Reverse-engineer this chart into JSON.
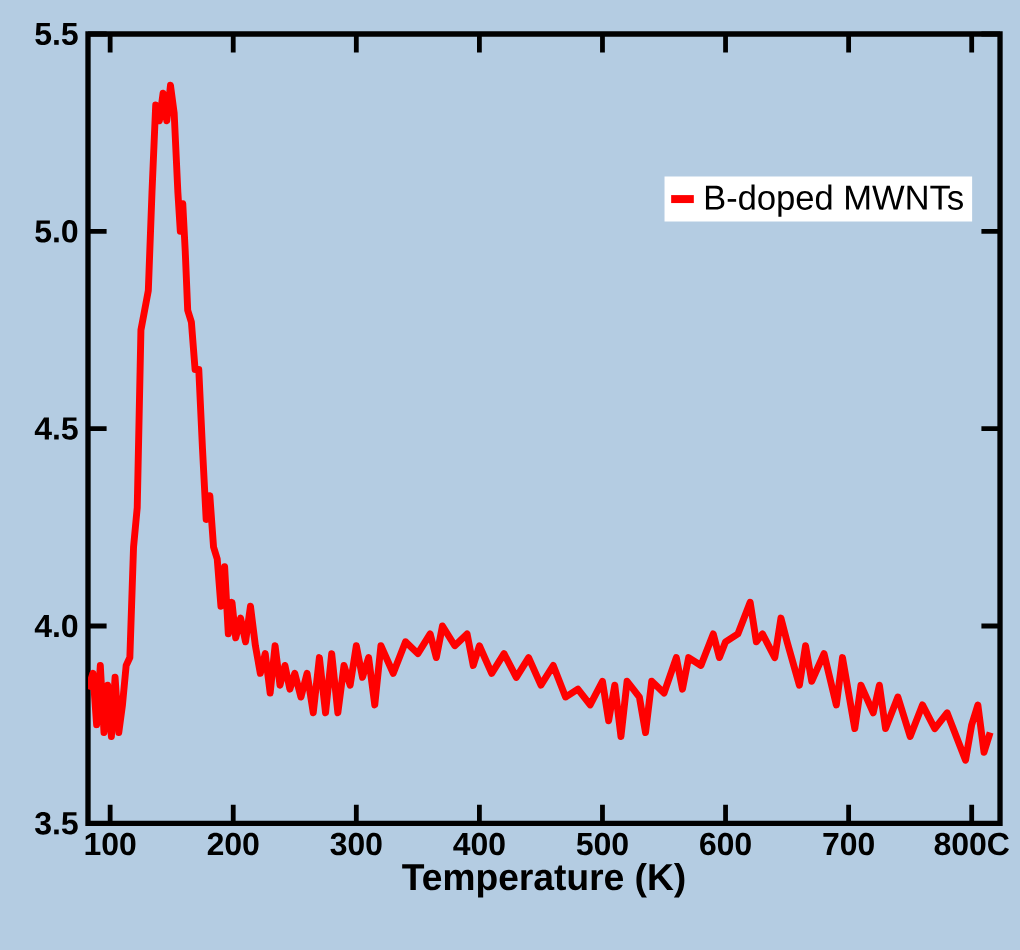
{
  "chart_data": {
    "type": "line",
    "xlabel": "Temperature (K)",
    "xlim": [
      82,
      823
    ],
    "ylim": [
      3.5,
      5.5
    ],
    "xticks": [
      100,
      200,
      300,
      400,
      500,
      600,
      700,
      {
        "value": 800,
        "label": "800C"
      }
    ],
    "yticks": [
      {
        "value": 3.5,
        "label": "3.5"
      },
      {
        "value": 4.0,
        "label": "4.0"
      },
      {
        "value": 4.5,
        "label": "4.5"
      },
      {
        "value": 5.0,
        "label": "5.0"
      },
      {
        "value": 5.5,
        "label": "5.5"
      }
    ],
    "legend": "top right",
    "grid": false,
    "marker": "none",
    "line_style": "solid",
    "x": [
      82,
      86,
      89,
      92,
      95,
      98,
      101,
      104,
      107,
      110,
      113,
      116,
      119,
      122,
      125,
      128,
      131,
      134,
      137,
      140,
      143,
      146,
      149,
      152,
      155,
      157,
      159,
      161,
      163,
      166,
      169,
      172,
      175,
      178,
      181,
      184,
      187,
      190,
      193,
      196,
      199,
      202,
      206,
      210,
      214,
      218,
      222,
      226,
      230,
      234,
      238,
      242,
      246,
      250,
      255,
      260,
      265,
      270,
      275,
      280,
      285,
      290,
      295,
      300,
      305,
      310,
      315,
      320,
      330,
      340,
      350,
      360,
      365,
      370,
      380,
      390,
      395,
      400,
      410,
      420,
      430,
      440,
      450,
      460,
      470,
      480,
      490,
      500,
      505,
      510,
      515,
      520,
      530,
      535,
      540,
      550,
      560,
      565,
      570,
      580,
      590,
      595,
      600,
      610,
      620,
      625,
      630,
      640,
      645,
      650,
      660,
      665,
      670,
      680,
      690,
      695,
      700,
      705,
      710,
      720,
      725,
      730,
      740,
      750,
      760,
      770,
      780,
      790,
      795,
      800,
      805,
      810,
      815
    ],
    "series": [
      {
        "name": "B-doped MWNTs",
        "color": "#ff0000",
        "values": [
          3.84,
          3.88,
          3.75,
          3.9,
          3.73,
          3.85,
          3.72,
          3.87,
          3.73,
          3.8,
          3.9,
          3.92,
          4.2,
          4.3,
          4.75,
          4.8,
          4.85,
          5.1,
          5.32,
          5.28,
          5.35,
          5.28,
          5.37,
          5.3,
          5.1,
          5.0,
          5.07,
          4.95,
          4.8,
          4.77,
          4.65,
          4.65,
          4.45,
          4.27,
          4.33,
          4.2,
          4.17,
          4.05,
          4.15,
          3.98,
          4.06,
          3.97,
          4.02,
          3.96,
          4.05,
          3.95,
          3.88,
          3.93,
          3.83,
          3.95,
          3.85,
          3.9,
          3.84,
          3.88,
          3.82,
          3.88,
          3.78,
          3.92,
          3.78,
          3.93,
          3.78,
          3.9,
          3.85,
          3.95,
          3.87,
          3.92,
          3.8,
          3.95,
          3.88,
          3.96,
          3.93,
          3.98,
          3.92,
          4.0,
          3.95,
          3.98,
          3.9,
          3.95,
          3.88,
          3.93,
          3.87,
          3.92,
          3.85,
          3.9,
          3.82,
          3.84,
          3.8,
          3.86,
          3.76,
          3.85,
          3.72,
          3.86,
          3.82,
          3.73,
          3.86,
          3.83,
          3.92,
          3.84,
          3.92,
          3.9,
          3.98,
          3.92,
          3.96,
          3.98,
          4.06,
          3.96,
          3.98,
          3.92,
          4.02,
          3.96,
          3.85,
          3.95,
          3.86,
          3.93,
          3.8,
          3.92,
          3.83,
          3.74,
          3.85,
          3.78,
          3.85,
          3.74,
          3.82,
          3.72,
          3.8,
          3.74,
          3.78,
          3.7,
          3.66,
          3.75,
          3.8,
          3.68,
          3.73
        ]
      }
    ]
  }
}
